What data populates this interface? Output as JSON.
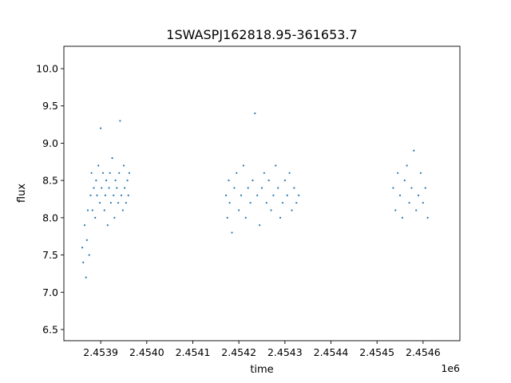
{
  "chart_data": {
    "type": "scatter",
    "title": "1SWASPJ162818.95-361653.7",
    "xlabel": "time",
    "ylabel": "flux",
    "x_offset_label": "1e6",
    "xlim": [
      2.45382,
      2.45468
    ],
    "ylim": [
      6.35,
      10.3
    ],
    "grid": false,
    "legend": "none",
    "point_color": "#1f77b4",
    "x_ticks": [
      2.4539,
      2.454,
      2.4541,
      2.4542,
      2.4543,
      2.4544,
      2.4545,
      2.4546
    ],
    "x_tick_labels": [
      "2.4539",
      "2.4540",
      "2.4541",
      "2.4542",
      "2.4543",
      "2.4544",
      "2.4545",
      "2.4546"
    ],
    "y_ticks": [
      6.5,
      7.0,
      7.5,
      8.0,
      8.5,
      9.0,
      9.5,
      10.0
    ],
    "y_tick_labels": [
      "6.5",
      "7.0",
      "7.5",
      "8.0",
      "8.5",
      "9.0",
      "9.5",
      "10.0"
    ],
    "series": [
      {
        "x": [
          2.45386,
          2.453862,
          2.453865,
          2.453868,
          2.45387,
          2.453872,
          2.453875,
          2.453878,
          2.45388,
          2.453882,
          2.453885,
          2.453888,
          2.45389,
          2.453892,
          2.453895,
          2.453898,
          2.4539,
          2.453902,
          2.453905,
          2.453908,
          2.45391,
          2.453912,
          2.453915,
          2.453918,
          2.45392,
          2.453922,
          2.453925,
          2.453928,
          2.45393,
          2.453932,
          2.453935,
          2.453938,
          2.45394,
          2.453942,
          2.453945,
          2.453948,
          2.45395,
          2.453952,
          2.453955,
          2.453958,
          2.45396,
          2.453962
        ],
        "y": [
          7.6,
          7.4,
          7.9,
          7.2,
          7.7,
          8.1,
          7.5,
          8.3,
          8.6,
          8.1,
          8.4,
          8.0,
          8.5,
          8.3,
          8.7,
          8.2,
          9.2,
          8.4,
          8.6,
          8.1,
          8.3,
          8.5,
          7.9,
          8.4,
          8.6,
          8.2,
          8.8,
          8.3,
          8.0,
          8.5,
          8.4,
          8.2,
          8.6,
          9.3,
          8.3,
          8.1,
          8.7,
          8.4,
          8.2,
          8.5,
          8.3,
          8.6
        ]
      },
      {
        "x": [
          2.454172,
          2.454175,
          2.454178,
          2.45418,
          2.454185,
          2.45419,
          2.454195,
          2.4542,
          2.454205,
          2.45421,
          2.454215,
          2.45422,
          2.454225,
          2.45423,
          2.454235,
          2.45424,
          2.454245,
          2.45425,
          2.454255,
          2.45426,
          2.454265,
          2.45427,
          2.454275,
          2.45428,
          2.454285,
          2.45429,
          2.454295,
          2.4543,
          2.454305,
          2.45431,
          2.454315,
          2.45432,
          2.454325,
          2.45433
        ],
        "y": [
          8.3,
          8.0,
          8.5,
          8.2,
          7.8,
          8.4,
          8.6,
          8.1,
          8.3,
          8.7,
          8.0,
          8.4,
          8.2,
          8.5,
          9.4,
          8.3,
          7.9,
          8.4,
          8.6,
          8.2,
          8.5,
          8.1,
          8.3,
          8.7,
          8.4,
          8.0,
          8.2,
          8.5,
          8.3,
          8.6,
          8.1,
          8.4,
          8.2,
          8.3
        ]
      },
      {
        "x": [
          2.454535,
          2.45454,
          2.454545,
          2.45455,
          2.454555,
          2.45456,
          2.454565,
          2.45457,
          2.454575,
          2.45458,
          2.454585,
          2.45459,
          2.454595,
          2.4546,
          2.454605,
          2.45461
        ],
        "y": [
          8.4,
          8.1,
          8.6,
          8.3,
          8.0,
          8.5,
          8.7,
          8.2,
          8.4,
          8.9,
          8.1,
          8.3,
          8.6,
          8.2,
          8.4,
          8.0
        ]
      }
    ]
  }
}
